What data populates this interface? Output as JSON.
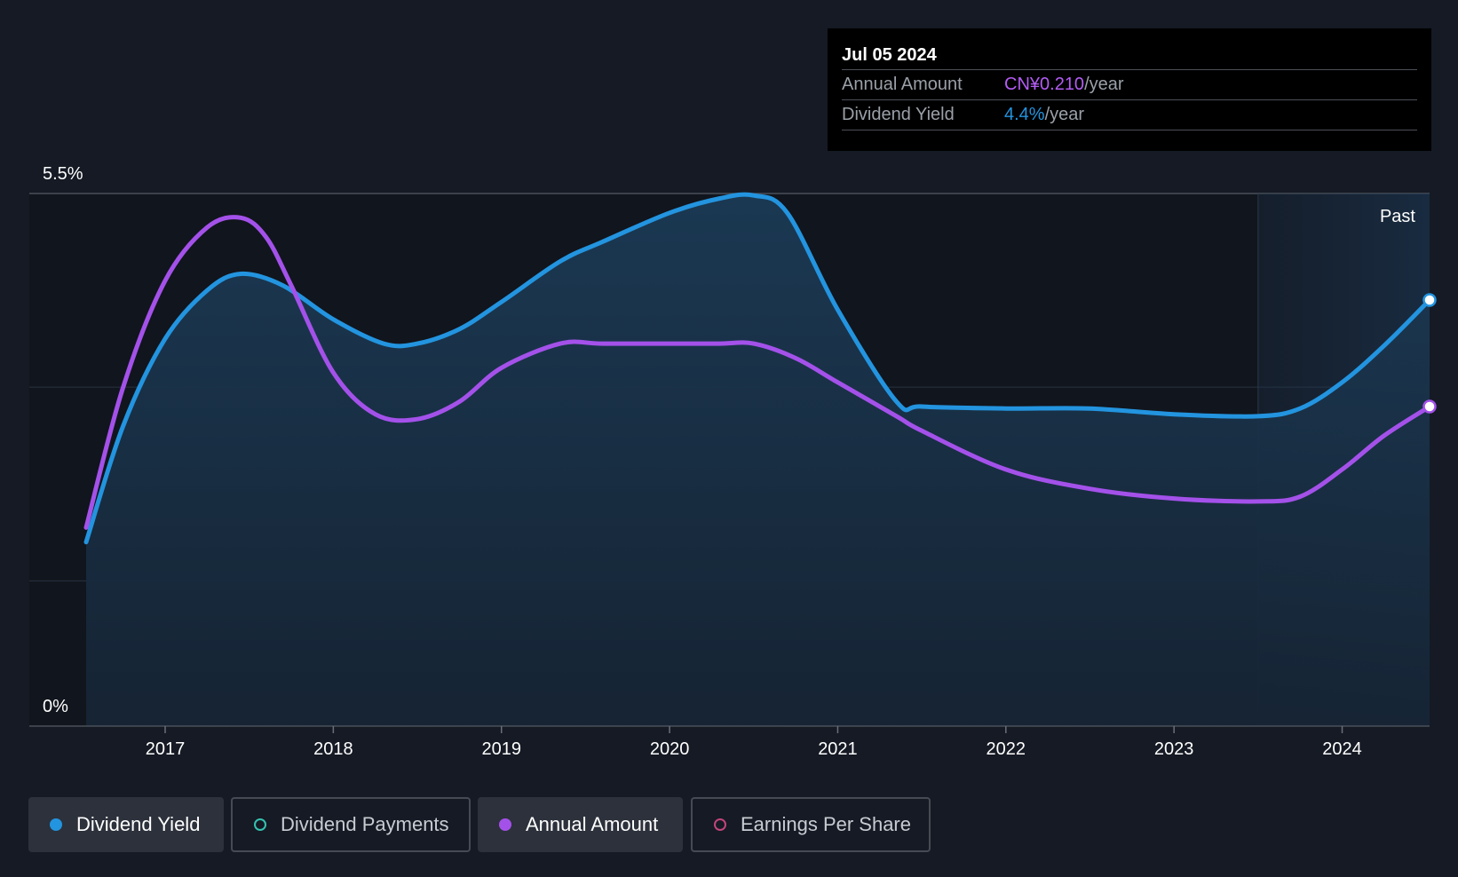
{
  "chart_data": {
    "type": "area",
    "y_tick_labels": [
      "5.5%",
      "0%"
    ],
    "ylim": [
      0,
      5.5
    ],
    "x_tick_labels": [
      "2017",
      "2018",
      "2019",
      "2020",
      "2021",
      "2022",
      "2023",
      "2024"
    ],
    "xlim": [
      2016.53,
      2024.52
    ],
    "past_label": "Past",
    "past_start": 2023.5,
    "series": [
      {
        "name": "Dividend Yield",
        "color": "#2394df",
        "filled": true,
        "x": [
          2016.53,
          2016.75,
          2017.0,
          2017.25,
          2017.45,
          2017.7,
          2018.0,
          2018.3,
          2018.5,
          2018.75,
          2019.0,
          2019.35,
          2019.6,
          2020.0,
          2020.3,
          2020.5,
          2020.7,
          2021.0,
          2021.35,
          2021.5,
          2022.0,
          2022.5,
          2023.0,
          2023.5,
          2023.75,
          2024.0,
          2024.25,
          2024.52
        ],
        "y": [
          1.9,
          3.1,
          4.0,
          4.5,
          4.67,
          4.55,
          4.2,
          3.95,
          3.95,
          4.1,
          4.38,
          4.8,
          5.0,
          5.3,
          5.45,
          5.48,
          5.3,
          4.3,
          3.35,
          3.3,
          3.28,
          3.28,
          3.22,
          3.2,
          3.28,
          3.55,
          3.93,
          4.4
        ]
      },
      {
        "name": "Annual Amount",
        "color": "#a451ea",
        "filled": false,
        "x": [
          2016.53,
          2016.75,
          2017.0,
          2017.25,
          2017.45,
          2017.6,
          2017.75,
          2018.0,
          2018.25,
          2018.5,
          2018.75,
          2019.0,
          2019.35,
          2019.6,
          2020.0,
          2020.3,
          2020.5,
          2020.75,
          2021.0,
          2021.35,
          2021.5,
          2022.0,
          2022.5,
          2023.0,
          2023.5,
          2023.75,
          2024.0,
          2024.25,
          2024.52
        ],
        "y": [
          2.05,
          3.5,
          4.6,
          5.15,
          5.25,
          5.05,
          4.55,
          3.65,
          3.22,
          3.17,
          3.35,
          3.7,
          3.95,
          3.95,
          3.95,
          3.95,
          3.95,
          3.8,
          3.55,
          3.2,
          3.05,
          2.65,
          2.45,
          2.35,
          2.32,
          2.37,
          2.65,
          3.0,
          3.3
        ]
      }
    ],
    "end_markers": true
  },
  "tooltip": {
    "date": "Jul 05 2024",
    "rows": [
      {
        "label": "Annual Amount",
        "value": "CN¥0.210",
        "unit": "/year",
        "color": "#b45cf5"
      },
      {
        "label": "Dividend Yield",
        "value": "4.4%",
        "unit": "/year",
        "color": "#2394df"
      }
    ]
  },
  "legend": [
    {
      "label": "Dividend Yield",
      "active": true,
      "dot_color": "#2394df",
      "hollow": false
    },
    {
      "label": "Dividend Payments",
      "active": false,
      "dot_color": "#35c2b0",
      "hollow": true
    },
    {
      "label": "Annual Amount",
      "active": true,
      "dot_color": "#a451ea",
      "hollow": false
    },
    {
      "label": "Earnings Per Share",
      "active": false,
      "dot_color": "#c2447a",
      "hollow": true
    }
  ]
}
